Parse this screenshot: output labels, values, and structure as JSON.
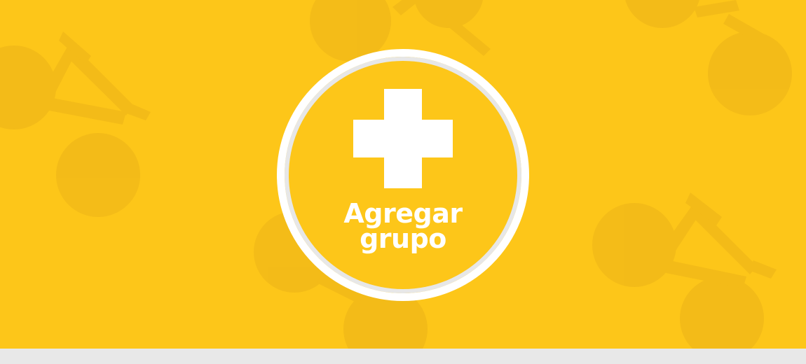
{
  "banner": {
    "background_color": "#FDC619",
    "pattern_icon": "bicycle-icon",
    "add_group_button": {
      "icon": "plus-icon",
      "label_line1": "Agregar",
      "label_line2": "grupo"
    }
  },
  "footer": {
    "background_color": "#E8E8E8"
  }
}
